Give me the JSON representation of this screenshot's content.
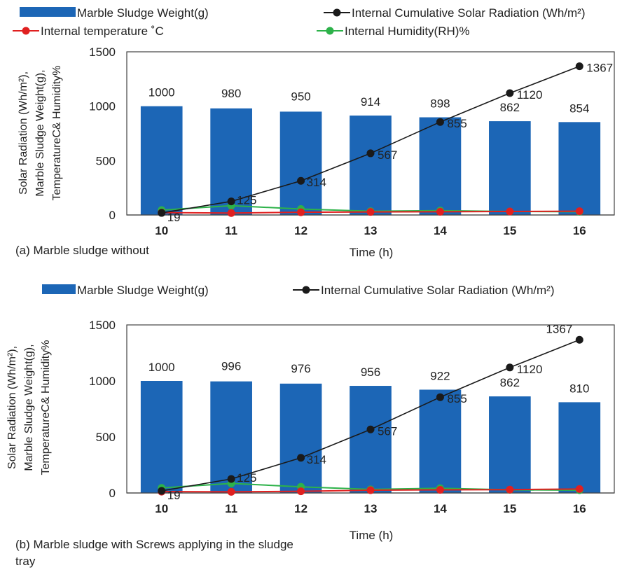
{
  "chart_data": [
    {
      "type": "bar+line",
      "caption": "(a) Marble sludge without",
      "xlabel": "Time (h)",
      "ylabel_lines": [
        "Solar Radiation (Wh/m²),",
        "Marble Sludge Weight(g),",
        "TemperatureC& Humidity%"
      ],
      "ylim": [
        0,
        1500
      ],
      "yticks": [
        "0",
        "500",
        "1000",
        "1500"
      ],
      "categories": [
        "10",
        "11",
        "12",
        "13",
        "14",
        "15",
        "16"
      ],
      "x_ticks_bold": true,
      "legend": [
        {
          "label": "Marble Sludge  Weight(g)",
          "kind": "bar",
          "color": "#1c66b6"
        },
        {
          "label": "Internal Cumulative Solar Radiation (Wh/m²)",
          "kind": "line",
          "color": "#1a1a1a"
        },
        {
          "label": "Internal temperature ˚C",
          "kind": "line",
          "color": "#e02020"
        },
        {
          "label": "Internal Humidity(RH)%",
          "kind": "line",
          "color": "#2db24a"
        }
      ],
      "bars": {
        "name": "Marble Sludge  Weight(g)",
        "values": [
          1000,
          980,
          950,
          914,
          898,
          862,
          854
        ],
        "labels": [
          "1000",
          "980",
          "950",
          "914",
          "898",
          "862",
          "854"
        ],
        "color": "#1c66b6"
      },
      "series": [
        {
          "name": "Internal Cumulative Solar Radiation (Wh/m²)",
          "values": [
            19,
            125,
            314,
            567,
            855,
            1120,
            1367
          ],
          "labels": [
            "19",
            "125",
            "314",
            "567",
            "855",
            "1120",
            "1367"
          ],
          "color": "#1a1a1a"
        },
        {
          "name": "Internal temperature ˚C",
          "values": [
            22,
            18,
            25,
            28,
            30,
            32,
            35
          ],
          "color": "#e02020"
        },
        {
          "name": "Internal Humidity(RH)%",
          "values": [
            45,
            85,
            55,
            35,
            40,
            32,
            30
          ],
          "color": "#2db24a"
        }
      ]
    },
    {
      "type": "bar+line",
      "caption": "(b) Marble sludge with Screws applying in the sludge tray",
      "xlabel": "Time (h)",
      "ylabel_lines": [
        "Solar Radiation (Wh/m²),",
        "Marble Sludge Weight(g),",
        "TemperatureC& Humidity%"
      ],
      "ylim": [
        0,
        1500
      ],
      "yticks": [
        "0",
        "500",
        "1000",
        "1500"
      ],
      "categories": [
        "10",
        "11",
        "12",
        "13",
        "14",
        "15",
        "16"
      ],
      "x_ticks_bold": true,
      "legend": [
        {
          "label": "Marble Sludge  Weight(g)",
          "kind": "bar",
          "color": "#1c66b6"
        },
        {
          "label": "Internal Cumulative Solar Radiation (Wh/m²)",
          "kind": "line",
          "color": "#1a1a1a"
        }
      ],
      "bars": {
        "name": "Marble Sludge  Weight(g)",
        "values": [
          1000,
          996,
          976,
          956,
          922,
          862,
          810
        ],
        "labels": [
          "1000",
          "996",
          "976",
          "956",
          "922",
          "862",
          "810"
        ],
        "color": "#1c66b6"
      },
      "series": [
        {
          "name": "Internal Cumulative Solar Radiation (Wh/m²)",
          "values": [
            19,
            125,
            314,
            567,
            855,
            1120,
            1367
          ],
          "labels": [
            "19",
            "125",
            "314",
            "567",
            "855",
            "1120",
            "1367"
          ],
          "color": "#1a1a1a"
        },
        {
          "name": "",
          "values": [
            12,
            10,
            15,
            25,
            28,
            30,
            35
          ],
          "color": "#e02020"
        },
        {
          "name": "",
          "values": [
            45,
            85,
            55,
            32,
            42,
            28,
            25
          ],
          "color": "#2db24a"
        }
      ]
    }
  ]
}
